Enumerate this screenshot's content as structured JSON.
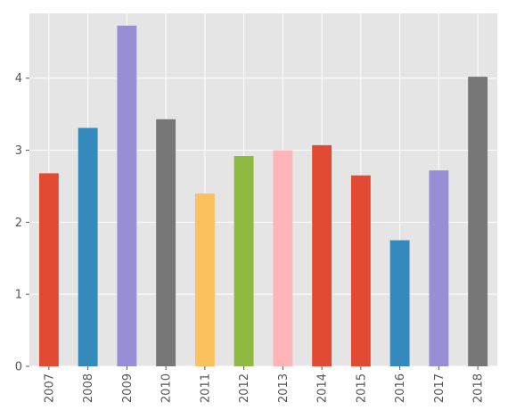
{
  "chart_data": {
    "type": "bar",
    "title": "",
    "xlabel": "",
    "ylabel": "",
    "categories": [
      "2007",
      "2008",
      "2009",
      "2010",
      "2011",
      "2012",
      "2013",
      "2014",
      "2015",
      "2016",
      "2017",
      "2018"
    ],
    "values": [
      2.68,
      3.31,
      4.73,
      3.43,
      2.4,
      2.92,
      3.0,
      3.07,
      2.65,
      1.75,
      2.72,
      4.02
    ],
    "bar_colors": [
      "#E24A33",
      "#348ABD",
      "#988ED5",
      "#777777",
      "#FBC15E",
      "#8EBA42",
      "#FFB5B8",
      "#E24A33",
      "#E24A33",
      "#348ABD",
      "#988ED5",
      "#777777"
    ],
    "ylim": [
      0,
      4.9
    ],
    "yticks": [
      0,
      1,
      2,
      3,
      4
    ],
    "grid": true,
    "background_color": "#E5E5E5",
    "grid_color": "#FFFFFF",
    "legend": "none",
    "style": "ggplot"
  }
}
